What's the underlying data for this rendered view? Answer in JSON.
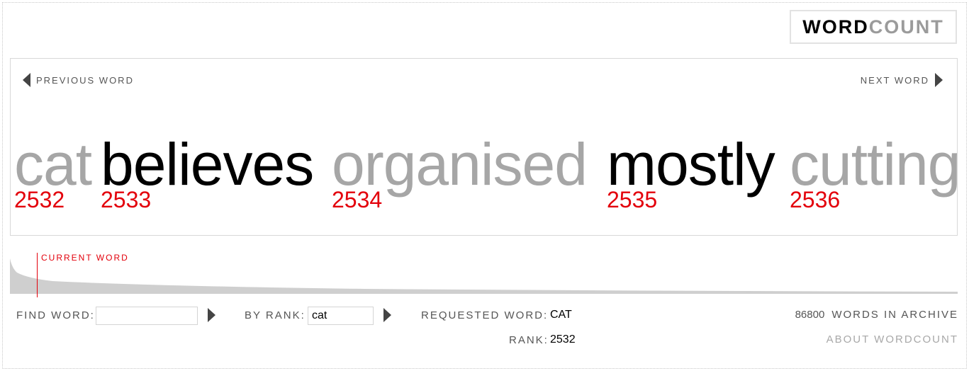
{
  "logo": {
    "part1": "WORD",
    "part2": "COUNT"
  },
  "nav": {
    "previous_label": "PREVIOUS WORD",
    "next_label": "NEXT WORD"
  },
  "words": [
    {
      "text": "cat",
      "rank": "2532",
      "tone": "gray"
    },
    {
      "text": "believes",
      "rank": "2533",
      "tone": "black"
    },
    {
      "text": "organised",
      "rank": "2534",
      "tone": "gray"
    },
    {
      "text": "mostly",
      "rank": "2535",
      "tone": "black"
    },
    {
      "text": "cutting",
      "rank": "2536",
      "tone": "gray"
    }
  ],
  "distribution": {
    "current_label": "CURRENT WORD"
  },
  "controls": {
    "find_label": "FIND WORD:",
    "find_value": "",
    "rank_label": "BY RANK:",
    "rank_value": "cat",
    "requested_label": "REQUESTED WORD:",
    "requested_value": "CAT",
    "rank_result_label": "RANK:",
    "rank_result_value": "2532"
  },
  "archive": {
    "count": "86800",
    "label": "WORDS IN ARCHIVE"
  },
  "about_label": "ABOUT WORDCOUNT",
  "colors": {
    "rank_red": "#e3000b",
    "word_gray": "#a6a6a6",
    "word_black": "#000000"
  }
}
